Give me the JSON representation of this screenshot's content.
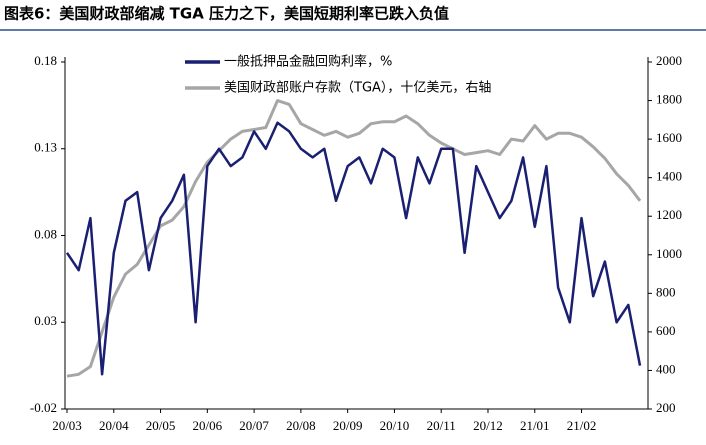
{
  "chart_data": {
    "type": "line",
    "title": "图表6：美国财政部缩减 TGA 压力之下，美国短期利率已跌入负值",
    "categories": [
      "20/03",
      null,
      null,
      null,
      "20/04",
      null,
      null,
      null,
      "20/05",
      null,
      null,
      null,
      "20/06",
      null,
      null,
      null,
      "20/07",
      null,
      null,
      null,
      "20/08",
      null,
      null,
      null,
      "20/09",
      null,
      null,
      null,
      "20/10",
      null,
      null,
      null,
      "20/11",
      null,
      null,
      null,
      "20/12",
      null,
      null,
      null,
      "21/01",
      null,
      null,
      null,
      "21/02",
      null,
      null,
      null,
      null,
      null
    ],
    "series": [
      {
        "name": "一般抵押品金融回购利率，%",
        "color": "#1a1f71",
        "values": [
          0.07,
          0.06,
          0.09,
          0.0,
          0.07,
          0.1,
          0.105,
          0.06,
          0.09,
          0.1,
          0.115,
          0.03,
          0.12,
          0.13,
          0.12,
          0.125,
          0.14,
          0.13,
          0.145,
          0.14,
          0.13,
          0.125,
          0.13,
          0.1,
          0.12,
          0.125,
          0.11,
          0.13,
          0.125,
          0.09,
          0.125,
          0.11,
          0.13,
          0.13,
          0.07,
          0.12,
          0.105,
          0.09,
          0.1,
          0.125,
          0.085,
          0.12,
          0.05,
          0.03,
          0.09,
          0.045,
          0.065,
          0.03,
          0.04,
          0.005
        ]
      },
      {
        "name": "美国财政部账户存款（TGA），十亿美元，右轴",
        "color": "#a6a6a6",
        "axis": "y2",
        "values": [
          370,
          380,
          420,
          600,
          780,
          900,
          950,
          1050,
          1150,
          1180,
          1250,
          1380,
          1480,
          1540,
          1600,
          1640,
          1650,
          1660,
          1800,
          1780,
          1680,
          1650,
          1620,
          1640,
          1610,
          1630,
          1680,
          1690,
          1690,
          1720,
          1680,
          1620,
          1580,
          1550,
          1520,
          1530,
          1540,
          1520,
          1600,
          1590,
          1670,
          1600,
          1630,
          1630,
          1610,
          1560,
          1500,
          1420,
          1360,
          1280
        ]
      }
    ],
    "ylim": [
      -0.02,
      0.18
    ],
    "yticks": [
      -0.02,
      0.03,
      0.08,
      0.13,
      0.18
    ],
    "y2lim": [
      200,
      2000
    ],
    "y2ticks": [
      200,
      400,
      600,
      800,
      1000,
      1200,
      1400,
      1600,
      1800,
      2000
    ]
  }
}
